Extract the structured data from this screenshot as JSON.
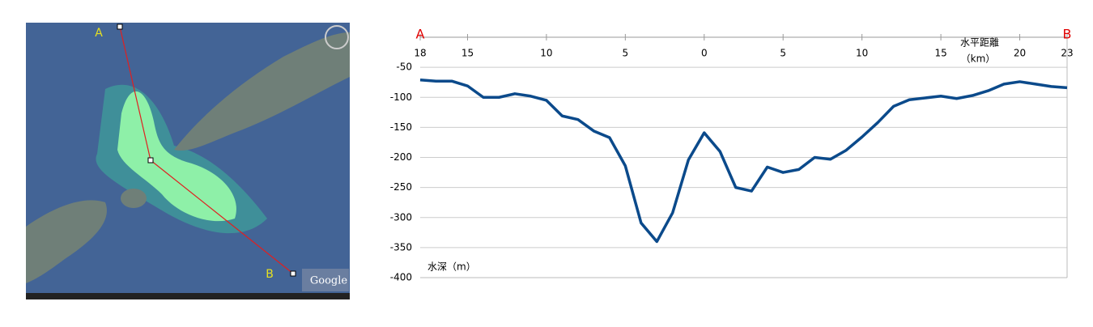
{
  "map": {
    "label_a": "A",
    "label_b": "B",
    "logo": "Google"
  },
  "chart_data": {
    "type": "line",
    "label_a": "A",
    "label_b": "B",
    "x_label": "水平距離",
    "x_unit": "（km）",
    "y_label": "水深（m）",
    "x": [
      -18,
      -17,
      -16,
      -15,
      -14,
      -13,
      -12,
      -11,
      -10,
      -9,
      -8,
      -7,
      -6,
      -5,
      -4,
      -3,
      -2,
      -1,
      0,
      1,
      2,
      3,
      4,
      5,
      6,
      7,
      8,
      9,
      10,
      11,
      12,
      13,
      14,
      15,
      16,
      17,
      18,
      19,
      20,
      21,
      22,
      23
    ],
    "series": [
      {
        "name": "水深",
        "color": "#0b4a8b",
        "values": [
          -71,
          -73,
          -73,
          -81,
          -100,
          -100,
          -94,
          -98,
          -105,
          -131,
          -137,
          -156,
          -167,
          -214,
          -309,
          -340,
          -292,
          -204,
          -159,
          -190,
          -250,
          -256,
          -216,
          -225,
          -220,
          -200,
          -203,
          -188,
          -166,
          -142,
          -115,
          -104,
          -101,
          -98,
          -102,
          -97,
          -89,
          -78,
          -74,
          -78,
          -82,
          -84
        ]
      }
    ],
    "xlim": [
      -18,
      23
    ],
    "xticks": [
      {
        "value": -18,
        "label": "18"
      },
      {
        "value": -15,
        "label": "15"
      },
      {
        "value": -10,
        "label": "10"
      },
      {
        "value": -5,
        "label": "5"
      },
      0,
      5,
      10,
      15,
      20,
      23
    ],
    "ylim": [
      -400,
      0
    ],
    "yticks": [
      -400,
      -350,
      -300,
      -250,
      -200,
      -150,
      -100,
      -50
    ],
    "grid": true
  }
}
